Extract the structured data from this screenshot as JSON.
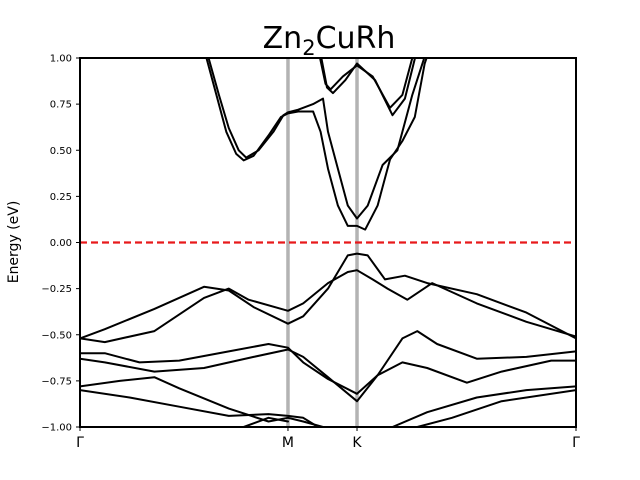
{
  "chart_data": {
    "type": "line",
    "title": {
      "base": "Zn",
      "sub": "2",
      "rest": "CuRh"
    },
    "xlabel": "",
    "ylabel": "Energy (eV)",
    "ylim": [
      -1.0,
      1.0
    ],
    "xlim": [
      0,
      1
    ],
    "y_ticks": [
      -1.0,
      -0.75,
      -0.5,
      -0.25,
      0.0,
      0.25,
      0.5,
      0.75,
      1.0
    ],
    "y_tick_labels": [
      "−1.00",
      "−0.75",
      "−0.50",
      "−0.25",
      "0.00",
      "0.25",
      "0.50",
      "0.75",
      "1.00"
    ],
    "kpoints": [
      {
        "label": "Γ",
        "x": 0.0
      },
      {
        "label": "M",
        "x": 0.4193
      },
      {
        "label": "K",
        "x": 0.5585
      },
      {
        "label": "Γ",
        "x": 1.0
      }
    ],
    "fermi_level": 0.0,
    "colors": {
      "bands": "#000000",
      "fermi": "#e8191b",
      "kpath_lines": "#b3b3b3"
    },
    "series": [
      {
        "values": [
          [
            0.254,
            1.05
          ],
          [
            0.28,
            0.8
          ],
          [
            0.3,
            0.62
          ],
          [
            0.32,
            0.5
          ],
          [
            0.335,
            0.46
          ],
          [
            0.36,
            0.5
          ],
          [
            0.39,
            0.6
          ],
          [
            0.41,
            0.69
          ],
          [
            0.4193,
            0.705
          ],
          [
            0.44,
            0.72
          ],
          [
            0.47,
            0.75
          ],
          [
            0.49,
            0.78
          ],
          [
            0.5,
            0.6
          ],
          [
            0.52,
            0.4
          ],
          [
            0.54,
            0.2
          ],
          [
            0.5585,
            0.13
          ],
          [
            0.58,
            0.2
          ],
          [
            0.61,
            0.42
          ],
          [
            0.64,
            0.5
          ],
          [
            0.67,
            0.8
          ],
          [
            0.7,
            1.05
          ]
        ]
      },
      {
        "values": [
          [
            0.25,
            1.05
          ],
          [
            0.275,
            0.8
          ],
          [
            0.295,
            0.6
          ],
          [
            0.315,
            0.48
          ],
          [
            0.33,
            0.445
          ],
          [
            0.35,
            0.47
          ],
          [
            0.38,
            0.58
          ],
          [
            0.405,
            0.68
          ],
          [
            0.4193,
            0.7
          ],
          [
            0.44,
            0.71
          ],
          [
            0.47,
            0.71
          ],
          [
            0.485,
            0.6
          ],
          [
            0.5,
            0.4
          ],
          [
            0.52,
            0.2
          ],
          [
            0.54,
            0.09
          ],
          [
            0.5585,
            0.09
          ],
          [
            0.575,
            0.07
          ],
          [
            0.6,
            0.2
          ],
          [
            0.625,
            0.45
          ],
          [
            0.65,
            0.55
          ],
          [
            0.675,
            0.68
          ],
          [
            0.695,
            0.97
          ],
          [
            0.705,
            1.05
          ]
        ]
      },
      {
        "values": [
          [
            0.48,
            1.05
          ],
          [
            0.495,
            0.86
          ],
          [
            0.505,
            0.83
          ],
          [
            0.53,
            0.9
          ],
          [
            0.5585,
            0.96
          ],
          [
            0.59,
            0.9
          ],
          [
            0.625,
            0.73
          ],
          [
            0.65,
            0.8
          ],
          [
            0.67,
            1.0
          ],
          [
            0.676,
            1.05
          ]
        ]
      },
      {
        "values": [
          [
            0.483,
            1.05
          ],
          [
            0.498,
            0.84
          ],
          [
            0.51,
            0.81
          ],
          [
            0.535,
            0.88
          ],
          [
            0.5585,
            0.97
          ],
          [
            0.595,
            0.88
          ],
          [
            0.63,
            0.69
          ],
          [
            0.655,
            0.78
          ],
          [
            0.68,
            1.05
          ]
        ]
      },
      {
        "values": [
          [
            0,
            -0.52
          ],
          [
            0.05,
            -0.47
          ],
          [
            0.15,
            -0.36
          ],
          [
            0.25,
            -0.24
          ],
          [
            0.3,
            -0.26
          ],
          [
            0.35,
            -0.35
          ],
          [
            0.4193,
            -0.44
          ],
          [
            0.45,
            -0.4
          ],
          [
            0.5,
            -0.25
          ],
          [
            0.54,
            -0.07
          ],
          [
            0.5585,
            -0.06
          ],
          [
            0.58,
            -0.07
          ],
          [
            0.615,
            -0.2
          ],
          [
            0.655,
            -0.18
          ],
          [
            0.7,
            -0.22
          ],
          [
            0.8,
            -0.28
          ],
          [
            0.9,
            -0.38
          ],
          [
            1.0,
            -0.52
          ]
        ]
      },
      {
        "values": [
          [
            0,
            -0.52
          ],
          [
            0.05,
            -0.54
          ],
          [
            0.15,
            -0.48
          ],
          [
            0.25,
            -0.3
          ],
          [
            0.3,
            -0.25
          ],
          [
            0.34,
            -0.31
          ],
          [
            0.4193,
            -0.37
          ],
          [
            0.45,
            -0.33
          ],
          [
            0.5,
            -0.22
          ],
          [
            0.54,
            -0.16
          ],
          [
            0.5585,
            -0.15
          ],
          [
            0.59,
            -0.2
          ],
          [
            0.62,
            -0.25
          ],
          [
            0.66,
            -0.31
          ],
          [
            0.71,
            -0.22
          ],
          [
            0.8,
            -0.33
          ],
          [
            0.9,
            -0.43
          ],
          [
            1.0,
            -0.51
          ]
        ]
      },
      {
        "values": [
          [
            0,
            -0.6
          ],
          [
            0.05,
            -0.6
          ],
          [
            0.12,
            -0.65
          ],
          [
            0.2,
            -0.64
          ],
          [
            0.3,
            -0.59
          ],
          [
            0.38,
            -0.55
          ],
          [
            0.4193,
            -0.57
          ],
          [
            0.45,
            -0.65
          ],
          [
            0.5,
            -0.74
          ],
          [
            0.5585,
            -0.82
          ],
          [
            0.6,
            -0.72
          ],
          [
            0.65,
            -0.65
          ],
          [
            0.7,
            -0.68
          ],
          [
            0.78,
            -0.76
          ],
          [
            0.85,
            -0.7
          ],
          [
            0.95,
            -0.64
          ],
          [
            1.0,
            -0.64
          ]
        ]
      },
      {
        "values": [
          [
            0,
            -0.63
          ],
          [
            0.05,
            -0.65
          ],
          [
            0.15,
            -0.7
          ],
          [
            0.25,
            -0.68
          ],
          [
            0.35,
            -0.62
          ],
          [
            0.4193,
            -0.58
          ],
          [
            0.45,
            -0.62
          ],
          [
            0.5,
            -0.73
          ],
          [
            0.5585,
            -0.86
          ],
          [
            0.6,
            -0.72
          ],
          [
            0.65,
            -0.52
          ],
          [
            0.68,
            -0.48
          ],
          [
            0.72,
            -0.55
          ],
          [
            0.8,
            -0.63
          ],
          [
            0.9,
            -0.62
          ],
          [
            1.0,
            -0.59
          ]
        ]
      },
      {
        "values": [
          [
            0,
            -0.78
          ],
          [
            0.08,
            -0.75
          ],
          [
            0.15,
            -0.73
          ],
          [
            0.2,
            -0.79
          ],
          [
            0.3,
            -0.9
          ],
          [
            0.38,
            -0.97
          ],
          [
            0.4193,
            -0.95
          ],
          [
            0.45,
            -0.97
          ],
          [
            0.49,
            -1.0
          ]
        ]
      },
      {
        "values": [
          [
            0,
            -0.8
          ],
          [
            0.1,
            -0.84
          ],
          [
            0.2,
            -0.89
          ],
          [
            0.3,
            -0.94
          ],
          [
            0.38,
            -0.93
          ],
          [
            0.4193,
            -0.94
          ],
          [
            0.45,
            -0.95
          ],
          [
            0.48,
            -1.0
          ]
        ]
      },
      {
        "values": [
          [
            0.33,
            -1.0
          ],
          [
            0.38,
            -0.95
          ],
          [
            0.4193,
            -0.97
          ]
        ]
      },
      {
        "values": [
          [
            0.63,
            -1.0
          ],
          [
            0.7,
            -0.92
          ],
          [
            0.8,
            -0.84
          ],
          [
            0.9,
            -0.8
          ],
          [
            1.0,
            -0.78
          ]
        ]
      },
      {
        "values": [
          [
            0.68,
            -1.0
          ],
          [
            0.75,
            -0.95
          ],
          [
            0.85,
            -0.86
          ],
          [
            1.0,
            -0.8
          ]
        ]
      }
    ]
  }
}
